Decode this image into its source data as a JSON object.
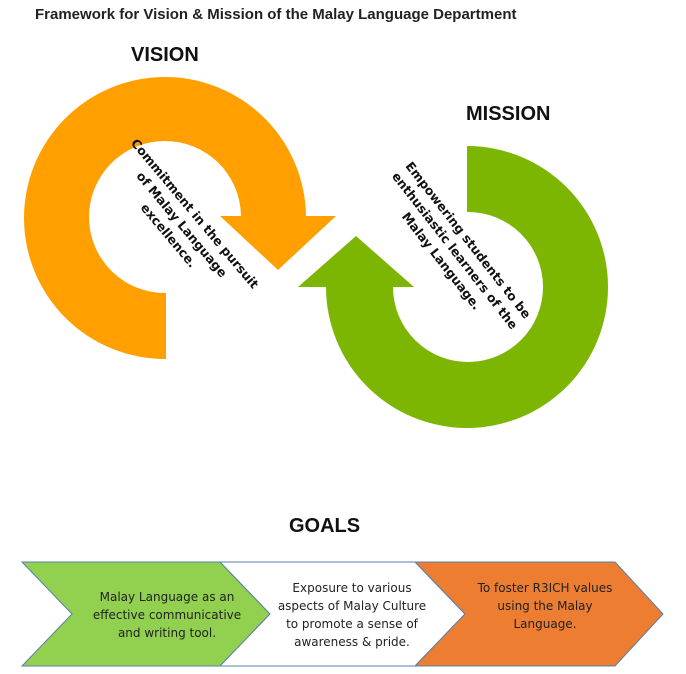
{
  "title": "Framework for Vision & Mission of the Malay Language Department",
  "vision": {
    "heading": "VISION",
    "lines": [
      "Commitment in the pursuit",
      "of Malay Language",
      "excellence."
    ]
  },
  "mission": {
    "heading": "MISSION",
    "lines": [
      "Empowering students to be",
      "enthusiastic learners of the",
      "Malay Language."
    ]
  },
  "goals": {
    "heading": "GOALS",
    "items": [
      {
        "lines": [
          "Malay Language as an",
          "effective communicative",
          "and writing tool."
        ],
        "color": "#92D050"
      },
      {
        "lines": [
          "Exposure to various",
          "aspects of Malay Culture",
          "to promote a sense of",
          "awareness & pride."
        ],
        "color": "#FFFFFF"
      },
      {
        "lines": [
          "To foster R3ICH values",
          "using the Malay",
          "Language."
        ],
        "color": "#ED7D31"
      }
    ]
  },
  "colors": {
    "vision_arrow": "#FFA000",
    "mission_arrow": "#7CB502",
    "chevron_border": "#5B7FA8"
  }
}
